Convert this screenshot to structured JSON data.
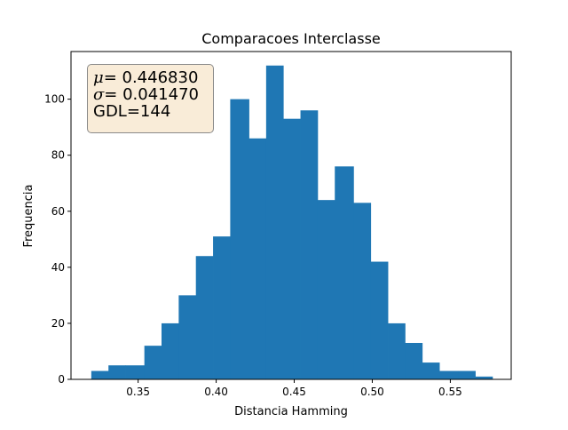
{
  "chart_data": {
    "type": "bar",
    "title": "Comparacoes Interclasse",
    "xlabel": "Distancia Hamming",
    "ylabel": "Frequencia",
    "xlim": [
      0.307,
      0.589
    ],
    "ylim": [
      0,
      117
    ],
    "bins": [
      {
        "start": 0.32,
        "end": 0.331,
        "count": 3
      },
      {
        "start": 0.331,
        "end": 0.342,
        "count": 5
      },
      {
        "start": 0.342,
        "end": 0.354,
        "count": 5
      },
      {
        "start": 0.354,
        "end": 0.365,
        "count": 12
      },
      {
        "start": 0.365,
        "end": 0.376,
        "count": 20
      },
      {
        "start": 0.376,
        "end": 0.387,
        "count": 30
      },
      {
        "start": 0.387,
        "end": 0.398,
        "count": 44
      },
      {
        "start": 0.398,
        "end": 0.409,
        "count": 51
      },
      {
        "start": 0.409,
        "end": 0.421,
        "count": 100
      },
      {
        "start": 0.421,
        "end": 0.432,
        "count": 86
      },
      {
        "start": 0.432,
        "end": 0.443,
        "count": 112
      },
      {
        "start": 0.443,
        "end": 0.454,
        "count": 93
      },
      {
        "start": 0.454,
        "end": 0.465,
        "count": 96
      },
      {
        "start": 0.465,
        "end": 0.476,
        "count": 64
      },
      {
        "start": 0.476,
        "end": 0.488,
        "count": 76
      },
      {
        "start": 0.488,
        "end": 0.499,
        "count": 63
      },
      {
        "start": 0.499,
        "end": 0.51,
        "count": 42
      },
      {
        "start": 0.51,
        "end": 0.521,
        "count": 20
      },
      {
        "start": 0.521,
        "end": 0.532,
        "count": 13
      },
      {
        "start": 0.532,
        "end": 0.543,
        "count": 6
      },
      {
        "start": 0.543,
        "end": 0.555,
        "count": 3
      },
      {
        "start": 0.555,
        "end": 0.566,
        "count": 3
      },
      {
        "start": 0.566,
        "end": 0.577,
        "count": 1
      }
    ],
    "xticks": [
      0.35,
      0.4,
      0.45,
      0.5,
      0.55
    ],
    "xtick_labels": [
      "0.35",
      "0.40",
      "0.45",
      "0.50",
      "0.55"
    ],
    "yticks": [
      0,
      20,
      40,
      60,
      80,
      100
    ],
    "ytick_labels": [
      "0",
      "20",
      "40",
      "60",
      "80",
      "100"
    ],
    "grid": false,
    "bar_color": "#1f77b4",
    "annotation": {
      "mu_symbol": "μ",
      "mu_value": "= 0.446830",
      "sigma_symbol": "σ",
      "sigma_value": "= 0.041470",
      "gdl": "GDL=144",
      "box_color": "#f9ecd8",
      "placement": "top-left"
    }
  }
}
